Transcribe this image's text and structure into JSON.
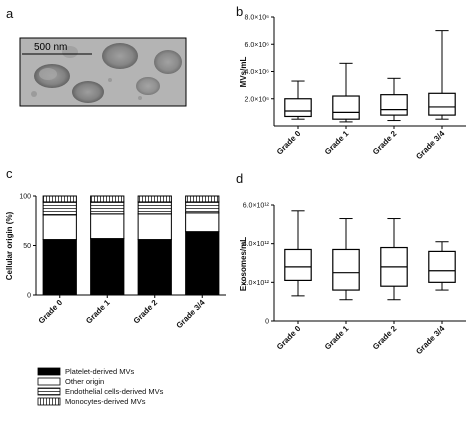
{
  "panels": {
    "a": {
      "label": "a",
      "scale_bar_label": "500 nm"
    },
    "b": {
      "label": "b"
    },
    "c": {
      "label": "c"
    },
    "d": {
      "label": "d"
    }
  },
  "chart_data": [
    {
      "id": "b",
      "type": "box",
      "ylabel": "MVs/mL",
      "categories": [
        "Grade 0",
        "Grade 1",
        "Grade 2",
        "Grade 3/4"
      ],
      "ylim": [
        0,
        8000000
      ],
      "yticks": [
        {
          "value": 2000000,
          "label": "2.0×10⁶"
        },
        {
          "value": 4000000,
          "label": "4.0×10⁶"
        },
        {
          "value": 6000000,
          "label": "6.0×10⁶"
        },
        {
          "value": 8000000,
          "label": "8.0×10⁶"
        }
      ],
      "boxes": [
        {
          "min": 500000,
          "q1": 700000,
          "median": 1100000,
          "q3": 2000000,
          "max": 3300000
        },
        {
          "min": 300000,
          "q1": 500000,
          "median": 1000000,
          "q3": 2200000,
          "max": 4600000
        },
        {
          "min": 400000,
          "q1": 800000,
          "median": 1200000,
          "q3": 2300000,
          "max": 3500000
        },
        {
          "min": 500000,
          "q1": 800000,
          "median": 1400000,
          "q3": 2400000,
          "max": 7000000
        }
      ]
    },
    {
      "id": "c",
      "type": "bar",
      "stacked": true,
      "ylabel": "Cellular origin (%)",
      "categories": [
        "Grade 0",
        "Grade 1",
        "Grade 2",
        "Grade 3/4"
      ],
      "ylim": [
        0,
        100
      ],
      "yticks": [
        {
          "value": 0,
          "label": "0"
        },
        {
          "value": 50,
          "label": "50"
        },
        {
          "value": 100,
          "label": "100"
        }
      ],
      "series": [
        {
          "name": "Platelet-derived MVs",
          "values": [
            56,
            57,
            56,
            64
          ],
          "color": "#000000",
          "pattern": "solid"
        },
        {
          "name": "Other origin",
          "values": [
            25,
            25,
            26,
            19
          ],
          "color": "#ffffff",
          "pattern": "none"
        },
        {
          "name": "Endothelial cells-derived MVs",
          "values": [
            13,
            12,
            12,
            11
          ],
          "color": "#ffffff",
          "pattern": "horizontal"
        },
        {
          "name": "Monocytes-derived MVs",
          "values": [
            6,
            6,
            6,
            6
          ],
          "color": "#ffffff",
          "pattern": "vertical"
        }
      ]
    },
    {
      "id": "d",
      "type": "box",
      "ylabel": "Exosomes/mL",
      "categories": [
        "Grade 0",
        "Grade 1",
        "Grade 2",
        "Grade 3/4"
      ],
      "ylim": [
        0,
        6000000000000
      ],
      "yticks": [
        {
          "value": 0,
          "label": "0"
        },
        {
          "value": 2000000000000,
          "label": "2.0×10¹²"
        },
        {
          "value": 4000000000000,
          "label": "4.0×10¹²"
        },
        {
          "value": 6000000000000,
          "label": "6.0×10¹²"
        }
      ],
      "boxes": [
        {
          "min": 1300000000000,
          "q1": 2100000000000,
          "median": 2800000000000,
          "q3": 3700000000000,
          "max": 5700000000000
        },
        {
          "min": 1100000000000,
          "q1": 1600000000000,
          "median": 2500000000000,
          "q3": 3700000000000,
          "max": 5300000000000
        },
        {
          "min": 1100000000000,
          "q1": 1800000000000,
          "median": 2800000000000,
          "q3": 3800000000000,
          "max": 5300000000000
        },
        {
          "min": 1600000000000,
          "q1": 2000000000000,
          "median": 2600000000000,
          "q3": 3600000000000,
          "max": 4100000000000
        }
      ]
    }
  ]
}
